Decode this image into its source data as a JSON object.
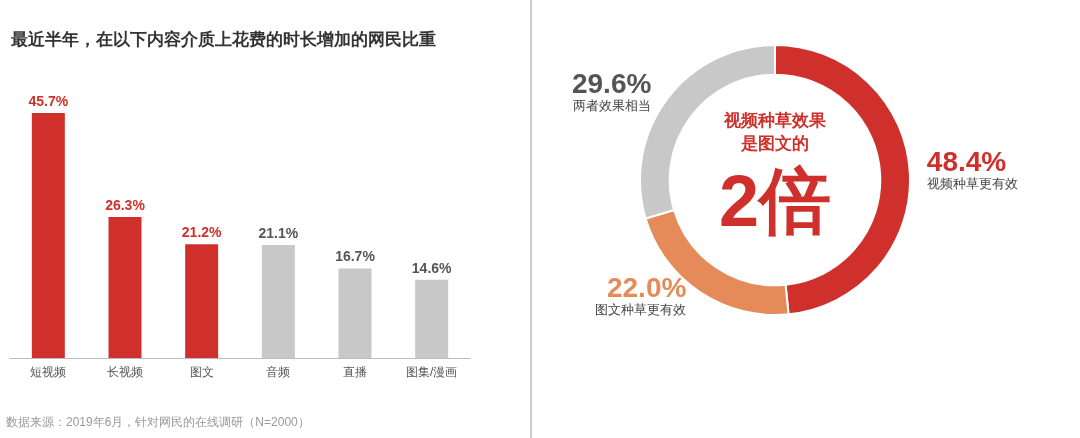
{
  "chart_data": [
    {
      "type": "bar",
      "title": "最近半年，在以下内容介质上花费的时长增加的网民比重",
      "categories": [
        "短视频",
        "长视频",
        "图文",
        "音频",
        "直播",
        "图集/漫画"
      ],
      "values": [
        45.7,
        26.3,
        21.2,
        21.1,
        16.7,
        14.6
      ],
      "colors": [
        "#d0302b",
        "#d0302b",
        "#d0302b",
        "#c8c8c8",
        "#c8c8c8",
        "#c8c8c8"
      ],
      "value_labels": [
        "45.7%",
        "26.3%",
        "21.2%",
        "21.1%",
        "16.7%",
        "14.6%"
      ],
      "annotations": [
        "数据来源：2019年6月，针对网民的在线调研（N=2000）"
      ]
    },
    {
      "type": "donut",
      "categories": [
        "视频种草更有效",
        "图文种草更有效",
        "两者效果相当"
      ],
      "values": [
        48.4,
        22.0,
        29.6
      ],
      "colors": [
        "#d0302b",
        "#e58b5a",
        "#c8c8c8"
      ],
      "value_labels": [
        "48.4%",
        "22.0%",
        "29.6%"
      ],
      "annotations": [
        "视频种草效果",
        "是图文的",
        "2倍"
      ]
    }
  ]
}
